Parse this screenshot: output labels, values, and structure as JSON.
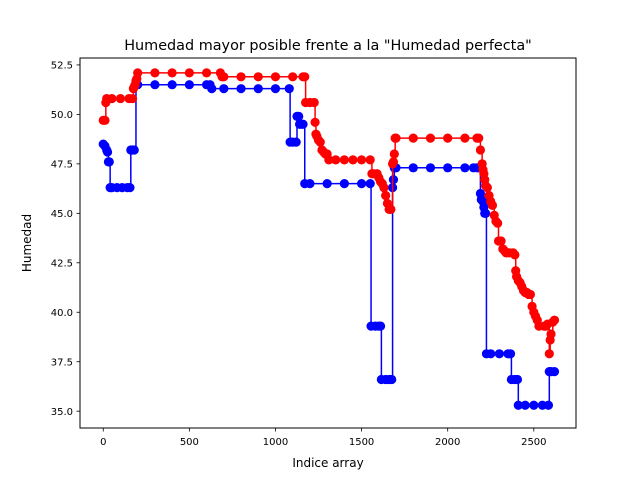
{
  "chart_data": {
    "type": "line",
    "title": "Humedad mayor posible frente a la \"Humedad perfecta\"",
    "xlabel": "Indice array",
    "ylabel": "Humedad",
    "xlim": [
      -135,
      2745
    ],
    "ylim": [
      34.15,
      52.85
    ],
    "xticks": [
      0,
      500,
      1000,
      1500,
      2000,
      2500
    ],
    "xtick_labels": [
      "0",
      "500",
      "1000",
      "1500",
      "2000",
      "2500"
    ],
    "yticks": [
      35.0,
      37.5,
      40.0,
      42.5,
      45.0,
      47.5,
      50.0,
      52.5
    ],
    "ytick_labels": [
      "35.0",
      "37.5",
      "40.0",
      "42.5",
      "45.0",
      "47.5",
      "50.0",
      "52.5"
    ],
    "grid": false,
    "legend": false,
    "series": [
      {
        "color": "#0000ff",
        "marker": "circle",
        "line": true,
        "points": [
          [
            0,
            48.5
          ],
          [
            10,
            48.4
          ],
          [
            20,
            48.2
          ],
          [
            25,
            48.1
          ],
          [
            30,
            47.6
          ],
          [
            35,
            47.6
          ],
          [
            40,
            46.3
          ],
          [
            50,
            46.3
          ],
          [
            80,
            46.3
          ],
          [
            110,
            46.3
          ],
          [
            140,
            46.3
          ],
          [
            155,
            46.3
          ],
          [
            160,
            48.2
          ],
          [
            170,
            48.2
          ],
          [
            180,
            48.2
          ],
          [
            190,
            51.5
          ],
          [
            200,
            51.5
          ],
          [
            300,
            51.5
          ],
          [
            400,
            51.5
          ],
          [
            500,
            51.5
          ],
          [
            600,
            51.5
          ],
          [
            620,
            51.5
          ],
          [
            630,
            51.3
          ],
          [
            700,
            51.3
          ],
          [
            800,
            51.3
          ],
          [
            900,
            51.3
          ],
          [
            1000,
            51.3
          ],
          [
            1080,
            51.3
          ],
          [
            1085,
            48.6
          ],
          [
            1100,
            48.6
          ],
          [
            1120,
            48.6
          ],
          [
            1125,
            49.9
          ],
          [
            1135,
            49.9
          ],
          [
            1140,
            49.5
          ],
          [
            1150,
            49.5
          ],
          [
            1160,
            49.5
          ],
          [
            1170,
            46.5
          ],
          [
            1200,
            46.5
          ],
          [
            1300,
            46.5
          ],
          [
            1400,
            46.5
          ],
          [
            1500,
            46.5
          ],
          [
            1550,
            46.5
          ],
          [
            1555,
            39.3
          ],
          [
            1580,
            39.3
          ],
          [
            1600,
            39.3
          ],
          [
            1610,
            39.3
          ],
          [
            1615,
            36.6
          ],
          [
            1640,
            36.6
          ],
          [
            1660,
            36.6
          ],
          [
            1675,
            36.6
          ],
          [
            1680,
            46.3
          ],
          [
            1685,
            46.7
          ],
          [
            1690,
            47.3
          ],
          [
            1700,
            47.3
          ],
          [
            1800,
            47.3
          ],
          [
            1900,
            47.3
          ],
          [
            2000,
            47.3
          ],
          [
            2100,
            47.3
          ],
          [
            2150,
            47.3
          ],
          [
            2170,
            47.3
          ],
          [
            2180,
            47.3
          ],
          [
            2190,
            46.0
          ],
          [
            2195,
            45.7
          ],
          [
            2205,
            45.6
          ],
          [
            2210,
            45.3
          ],
          [
            2215,
            45.0
          ],
          [
            2220,
            45.0
          ],
          [
            2225,
            37.9
          ],
          [
            2250,
            37.9
          ],
          [
            2300,
            37.9
          ],
          [
            2350,
            37.9
          ],
          [
            2365,
            37.9
          ],
          [
            2370,
            36.6
          ],
          [
            2390,
            36.6
          ],
          [
            2405,
            36.6
          ],
          [
            2410,
            35.3
          ],
          [
            2450,
            35.3
          ],
          [
            2500,
            35.3
          ],
          [
            2550,
            35.3
          ],
          [
            2585,
            35.3
          ],
          [
            2590,
            37.0
          ],
          [
            2600,
            37.0
          ],
          [
            2620,
            37.0
          ]
        ]
      },
      {
        "color": "#ff0000",
        "marker": "circle",
        "line": true,
        "points": [
          [
            0,
            49.7
          ],
          [
            10,
            49.7
          ],
          [
            15,
            50.6
          ],
          [
            20,
            50.8
          ],
          [
            50,
            50.8
          ],
          [
            100,
            50.8
          ],
          [
            150,
            50.8
          ],
          [
            170,
            50.8
          ],
          [
            175,
            51.3
          ],
          [
            180,
            51.4
          ],
          [
            185,
            51.5
          ],
          [
            190,
            51.7
          ],
          [
            195,
            51.8
          ],
          [
            200,
            52.1
          ],
          [
            300,
            52.1
          ],
          [
            400,
            52.1
          ],
          [
            500,
            52.1
          ],
          [
            600,
            52.1
          ],
          [
            680,
            52.1
          ],
          [
            690,
            51.9
          ],
          [
            700,
            51.9
          ],
          [
            800,
            51.9
          ],
          [
            900,
            51.9
          ],
          [
            1000,
            51.9
          ],
          [
            1100,
            51.9
          ],
          [
            1160,
            51.9
          ],
          [
            1170,
            51.9
          ],
          [
            1175,
            50.6
          ],
          [
            1200,
            50.6
          ],
          [
            1225,
            50.6
          ],
          [
            1230,
            49.6
          ],
          [
            1235,
            49.0
          ],
          [
            1240,
            48.9
          ],
          [
            1250,
            48.7
          ],
          [
            1260,
            48.6
          ],
          [
            1270,
            48.2
          ],
          [
            1280,
            48.1
          ],
          [
            1290,
            48.0
          ],
          [
            1300,
            48.0
          ],
          [
            1310,
            47.7
          ],
          [
            1350,
            47.7
          ],
          [
            1400,
            47.7
          ],
          [
            1450,
            47.7
          ],
          [
            1500,
            47.7
          ],
          [
            1550,
            47.7
          ],
          [
            1560,
            47.0
          ],
          [
            1570,
            47.0
          ],
          [
            1590,
            47.0
          ],
          [
            1600,
            46.8
          ],
          [
            1610,
            46.6
          ],
          [
            1620,
            46.5
          ],
          [
            1630,
            46.3
          ],
          [
            1640,
            45.9
          ],
          [
            1650,
            45.5
          ],
          [
            1660,
            45.2
          ],
          [
            1670,
            45.2
          ],
          [
            1680,
            47.5
          ],
          [
            1685,
            47.6
          ],
          [
            1690,
            48.0
          ],
          [
            1695,
            48.8
          ],
          [
            1700,
            48.8
          ],
          [
            1800,
            48.8
          ],
          [
            1900,
            48.8
          ],
          [
            2000,
            48.8
          ],
          [
            2100,
            48.8
          ],
          [
            2170,
            48.8
          ],
          [
            2180,
            48.8
          ],
          [
            2190,
            48.2
          ],
          [
            2200,
            47.5
          ],
          [
            2205,
            47.2
          ],
          [
            2210,
            47.0
          ],
          [
            2215,
            46.7
          ],
          [
            2220,
            46.4
          ],
          [
            2230,
            46.3
          ],
          [
            2240,
            45.9
          ],
          [
            2250,
            45.6
          ],
          [
            2260,
            45.4
          ],
          [
            2270,
            44.9
          ],
          [
            2280,
            44.6
          ],
          [
            2290,
            44.5
          ],
          [
            2295,
            43.6
          ],
          [
            2310,
            43.6
          ],
          [
            2320,
            43.2
          ],
          [
            2330,
            43.1
          ],
          [
            2340,
            43.0
          ],
          [
            2360,
            43.0
          ],
          [
            2380,
            43.0
          ],
          [
            2390,
            42.9
          ],
          [
            2395,
            42.1
          ],
          [
            2400,
            41.8
          ],
          [
            2410,
            41.6
          ],
          [
            2420,
            41.5
          ],
          [
            2430,
            41.3
          ],
          [
            2440,
            41.1
          ],
          [
            2450,
            41.0
          ],
          [
            2460,
            41.0
          ],
          [
            2470,
            40.9
          ],
          [
            2480,
            40.9
          ],
          [
            2490,
            40.3
          ],
          [
            2500,
            40.0
          ],
          [
            2510,
            39.8
          ],
          [
            2520,
            39.6
          ],
          [
            2530,
            39.3
          ],
          [
            2560,
            39.3
          ],
          [
            2570,
            39.3
          ],
          [
            2580,
            39.4
          ],
          [
            2590,
            37.9
          ],
          [
            2595,
            38.6
          ],
          [
            2600,
            38.9
          ],
          [
            2610,
            39.5
          ],
          [
            2620,
            39.6
          ]
        ]
      }
    ]
  }
}
